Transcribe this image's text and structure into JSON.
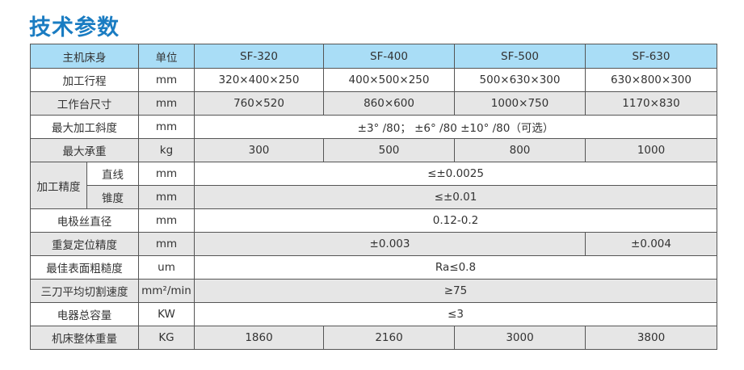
{
  "title": "技术参数",
  "header": [
    "主机床身",
    "单位",
    "SF-320",
    "SF-400",
    "SF-500",
    "SF-630"
  ],
  "rows": {
    "travel": {
      "label": "加工行程",
      "unit": "mm",
      "v": [
        "320×400×250",
        "400×500×250",
        "500×630×300",
        "630×800×300"
      ]
    },
    "table_size": {
      "label": "工作台尺寸",
      "unit": "mm",
      "v": [
        "760×520",
        "860×600",
        "1000×750",
        "1170×830"
      ]
    },
    "taper": {
      "label": "最大加工斜度",
      "unit": "mm",
      "v": "±3° /80； ±6° /80 ±10° /80（可选）"
    },
    "load": {
      "label": "最大承重",
      "unit": "kg",
      "v": [
        "300",
        "500",
        "800",
        "1000"
      ]
    },
    "precision": {
      "label": "加工精度",
      "straight": {
        "label": "直线",
        "unit": "mm",
        "v": "≤±0.0025"
      },
      "taper": {
        "label": "锥度",
        "unit": "mm",
        "v": "≤±0.01"
      }
    },
    "wire": {
      "label": "电极丝直径",
      "unit": "mm",
      "v": "0.12-0.2"
    },
    "repeat": {
      "label": "重复定位精度",
      "unit": "mm",
      "v": [
        "±0.003",
        "±0.004"
      ]
    },
    "rough": {
      "label": "最佳表面粗糙度",
      "unit": "um",
      "v": "Ra≤0.8"
    },
    "speed": {
      "label": "三刀平均切割速度",
      "unit": "mm²/min",
      "v": "≥75"
    },
    "power": {
      "label": "电器总容量",
      "unit": "KW",
      "v": "≤3"
    },
    "weight": {
      "label": "机床整体重量",
      "unit": "KG",
      "v": [
        "1860",
        "2160",
        "3000",
        "3800"
      ]
    }
  }
}
